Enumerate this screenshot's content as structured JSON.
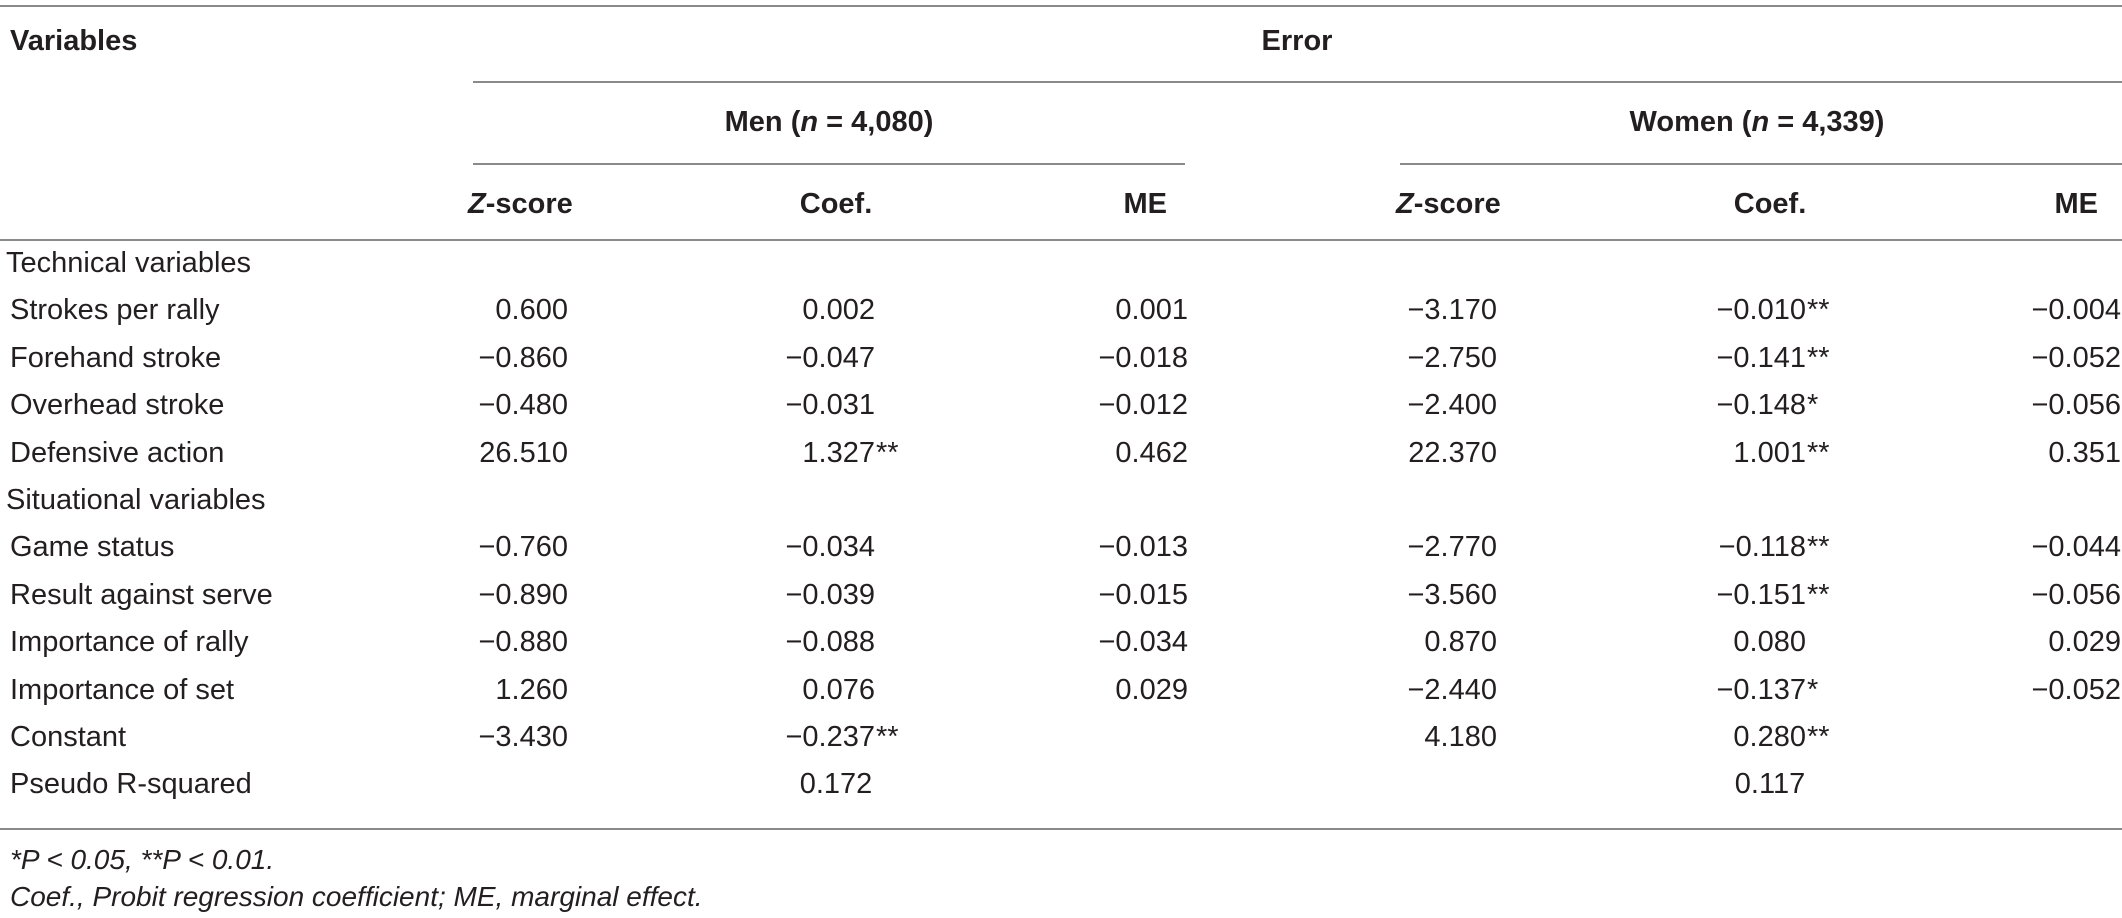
{
  "table": {
    "header": {
      "variables": "Variables",
      "error": "Error",
      "men_label": "Men (",
      "men_n": "n",
      "men_rest": " = 4,080)",
      "women_label": "Women (",
      "women_n": "n",
      "women_rest": " = 4,339)",
      "z_letter": "Z",
      "z_rest": "-score",
      "coef": "Coef.",
      "me": "ME"
    },
    "sections": {
      "technical": "Technical variables",
      "situational": "Situational variables"
    },
    "rows": [
      {
        "label": "Strokes per rally",
        "men_z": "0.600",
        "men_coef": "0.002",
        "men_coef_sig": "",
        "men_me": "0.001",
        "women_z": "−3.170",
        "women_coef": "−0.010",
        "women_coef_sig": "**",
        "women_me": "−0.004"
      },
      {
        "label": "Forehand stroke",
        "men_z": "−0.860",
        "men_coef": "−0.047",
        "men_coef_sig": "",
        "men_me": "−0.018",
        "women_z": "−2.750",
        "women_coef": "−0.141",
        "women_coef_sig": "**",
        "women_me": "−0.052"
      },
      {
        "label": "Overhead stroke",
        "men_z": "−0.480",
        "men_coef": "−0.031",
        "men_coef_sig": "",
        "men_me": "−0.012",
        "women_z": "−2.400",
        "women_coef": "−0.148",
        "women_coef_sig": "*",
        "women_me": "−0.056"
      },
      {
        "label": "Defensive action",
        "men_z": "26.510",
        "men_coef": "1.327",
        "men_coef_sig": "**",
        "men_me": "0.462",
        "women_z": "22.370",
        "women_coef": "1.001",
        "women_coef_sig": "**",
        "women_me": "0.351"
      },
      {
        "label": "Game status",
        "men_z": "−0.760",
        "men_coef": "−0.034",
        "men_coef_sig": "",
        "men_me": "−0.013",
        "women_z": "−2.770",
        "women_coef": "−0.118",
        "women_coef_sig": "**",
        "women_me": "−0.044"
      },
      {
        "label": "Result against serve",
        "men_z": "−0.890",
        "men_coef": "−0.039",
        "men_coef_sig": "",
        "men_me": "−0.015",
        "women_z": "−3.560",
        "women_coef": "−0.151",
        "women_coef_sig": "**",
        "women_me": "−0.056"
      },
      {
        "label": "Importance of rally",
        "men_z": "−0.880",
        "men_coef": "−0.088",
        "men_coef_sig": "",
        "men_me": "−0.034",
        "women_z": "0.870",
        "women_coef": "0.080",
        "women_coef_sig": "",
        "women_me": "0.029"
      },
      {
        "label": "Importance of set",
        "men_z": "1.260",
        "men_coef": "0.076",
        "men_coef_sig": "",
        "men_me": "0.029",
        "women_z": "−2.440",
        "women_coef": "−0.137",
        "women_coef_sig": "*",
        "women_me": "−0.052"
      },
      {
        "label": "Constant",
        "men_z": "−3.430",
        "men_coef": "−0.237",
        "men_coef_sig": "**",
        "men_me": "",
        "women_z": "4.180",
        "women_coef": "0.280",
        "women_coef_sig": "**",
        "women_me": ""
      }
    ],
    "pseudo": {
      "label": "Pseudo R-squared",
      "men": "0.172",
      "women": "0.117"
    }
  },
  "footnotes": {
    "significance": "*P < 0.05, **P < 0.01.",
    "abbreviations": "Coef., Probit regression coefficient; ME, marginal effect."
  }
}
